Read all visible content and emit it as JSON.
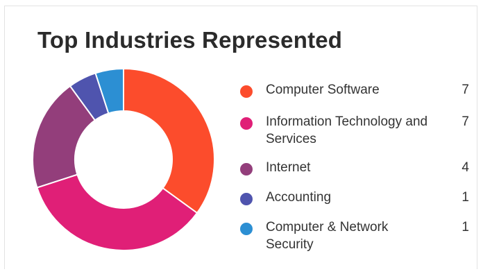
{
  "card": {
    "title": "Top Industries Represented"
  },
  "chart_data": {
    "type": "pie",
    "donut": true,
    "title": "Top Industries Represented",
    "legend_position": "right",
    "slices": [
      {
        "label": "Computer Software",
        "value": 7,
        "color": "#fc4c2c"
      },
      {
        "label": "Information Technology and Services",
        "value": 7,
        "color": "#e01f77"
      },
      {
        "label": "Internet",
        "value": 4,
        "color": "#933e7b"
      },
      {
        "label": "Accounting",
        "value": 1,
        "color": "#4f54ae"
      },
      {
        "label": "Computer & Network Security",
        "value": 1,
        "color": "#2c8fd3"
      }
    ]
  }
}
